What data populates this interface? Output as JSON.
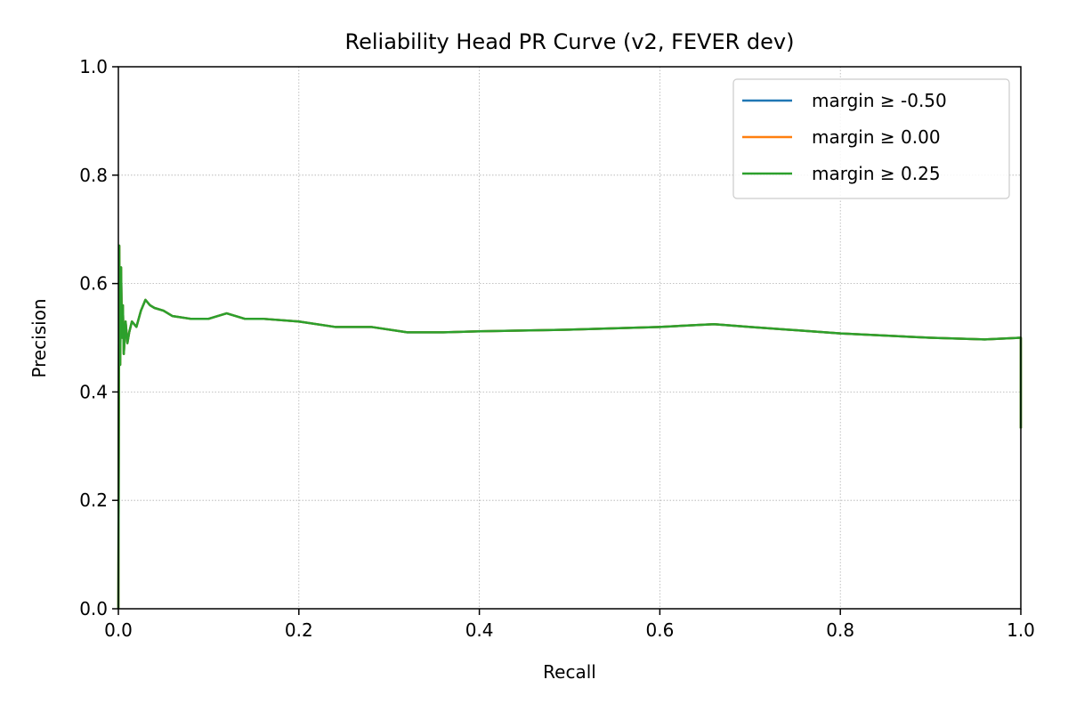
{
  "chart_data": {
    "type": "line",
    "title": "Reliability Head PR Curve (v2, FEVER dev)",
    "xlabel": "Recall",
    "ylabel": "Precision",
    "xlim": [
      0.0,
      1.0
    ],
    "ylim": [
      0.0,
      1.0
    ],
    "xticks": [
      "0.0",
      "0.2",
      "0.4",
      "0.6",
      "0.8",
      "1.0"
    ],
    "yticks": [
      "0.0",
      "0.2",
      "0.4",
      "0.6",
      "0.8",
      "1.0"
    ],
    "grid": true,
    "legend_position": "top-right",
    "series": [
      {
        "name": "margin ≥ -0.50",
        "color": "#1f77b4",
        "x": [
          0.0,
          0.001,
          0.002,
          0.003,
          0.004,
          0.005,
          0.006,
          0.008,
          0.01,
          0.012,
          0.015,
          0.02,
          0.025,
          0.03,
          0.035,
          0.04,
          0.05,
          0.06,
          0.08,
          0.1,
          0.12,
          0.14,
          0.16,
          0.2,
          0.24,
          0.28,
          0.32,
          0.36,
          0.4,
          0.5,
          0.6,
          0.66,
          0.7,
          0.8,
          0.9,
          0.96,
          1.0,
          1.0
        ],
        "y": [
          0.0,
          0.67,
          0.45,
          0.63,
          0.5,
          0.56,
          0.47,
          0.53,
          0.49,
          0.51,
          0.53,
          0.52,
          0.55,
          0.57,
          0.56,
          0.555,
          0.55,
          0.54,
          0.535,
          0.535,
          0.545,
          0.535,
          0.535,
          0.53,
          0.52,
          0.52,
          0.51,
          0.51,
          0.512,
          0.515,
          0.52,
          0.525,
          0.52,
          0.508,
          0.5,
          0.497,
          0.5,
          0.333
        ]
      },
      {
        "name": "margin ≥ 0.00",
        "color": "#ff7f0e",
        "x": [
          0.0,
          0.001,
          0.002,
          0.003,
          0.004,
          0.005,
          0.006,
          0.008,
          0.01,
          0.012,
          0.015,
          0.02,
          0.025,
          0.03,
          0.035,
          0.04,
          0.05,
          0.06,
          0.08,
          0.1,
          0.12,
          0.14,
          0.16,
          0.2,
          0.24,
          0.28,
          0.32,
          0.36,
          0.4,
          0.5,
          0.6,
          0.66,
          0.7,
          0.8,
          0.9,
          0.96,
          1.0,
          1.0
        ],
        "y": [
          0.0,
          0.67,
          0.45,
          0.63,
          0.5,
          0.56,
          0.47,
          0.53,
          0.49,
          0.51,
          0.53,
          0.52,
          0.55,
          0.57,
          0.56,
          0.555,
          0.55,
          0.54,
          0.535,
          0.535,
          0.545,
          0.535,
          0.535,
          0.53,
          0.52,
          0.52,
          0.51,
          0.51,
          0.512,
          0.515,
          0.52,
          0.525,
          0.52,
          0.508,
          0.5,
          0.497,
          0.5,
          0.333
        ]
      },
      {
        "name": "margin ≥ 0.25",
        "color": "#2ca02c",
        "x": [
          0.0,
          0.001,
          0.002,
          0.003,
          0.004,
          0.005,
          0.006,
          0.008,
          0.01,
          0.012,
          0.015,
          0.02,
          0.025,
          0.03,
          0.035,
          0.04,
          0.05,
          0.06,
          0.08,
          0.1,
          0.12,
          0.14,
          0.16,
          0.2,
          0.24,
          0.28,
          0.32,
          0.36,
          0.4,
          0.5,
          0.6,
          0.66,
          0.7,
          0.8,
          0.9,
          0.96,
          1.0,
          1.0
        ],
        "y": [
          0.0,
          0.67,
          0.45,
          0.63,
          0.5,
          0.56,
          0.47,
          0.53,
          0.49,
          0.51,
          0.53,
          0.52,
          0.55,
          0.57,
          0.56,
          0.555,
          0.55,
          0.54,
          0.535,
          0.535,
          0.545,
          0.535,
          0.535,
          0.53,
          0.52,
          0.52,
          0.51,
          0.51,
          0.512,
          0.515,
          0.52,
          0.525,
          0.52,
          0.508,
          0.5,
          0.497,
          0.5,
          0.333
        ]
      }
    ]
  }
}
